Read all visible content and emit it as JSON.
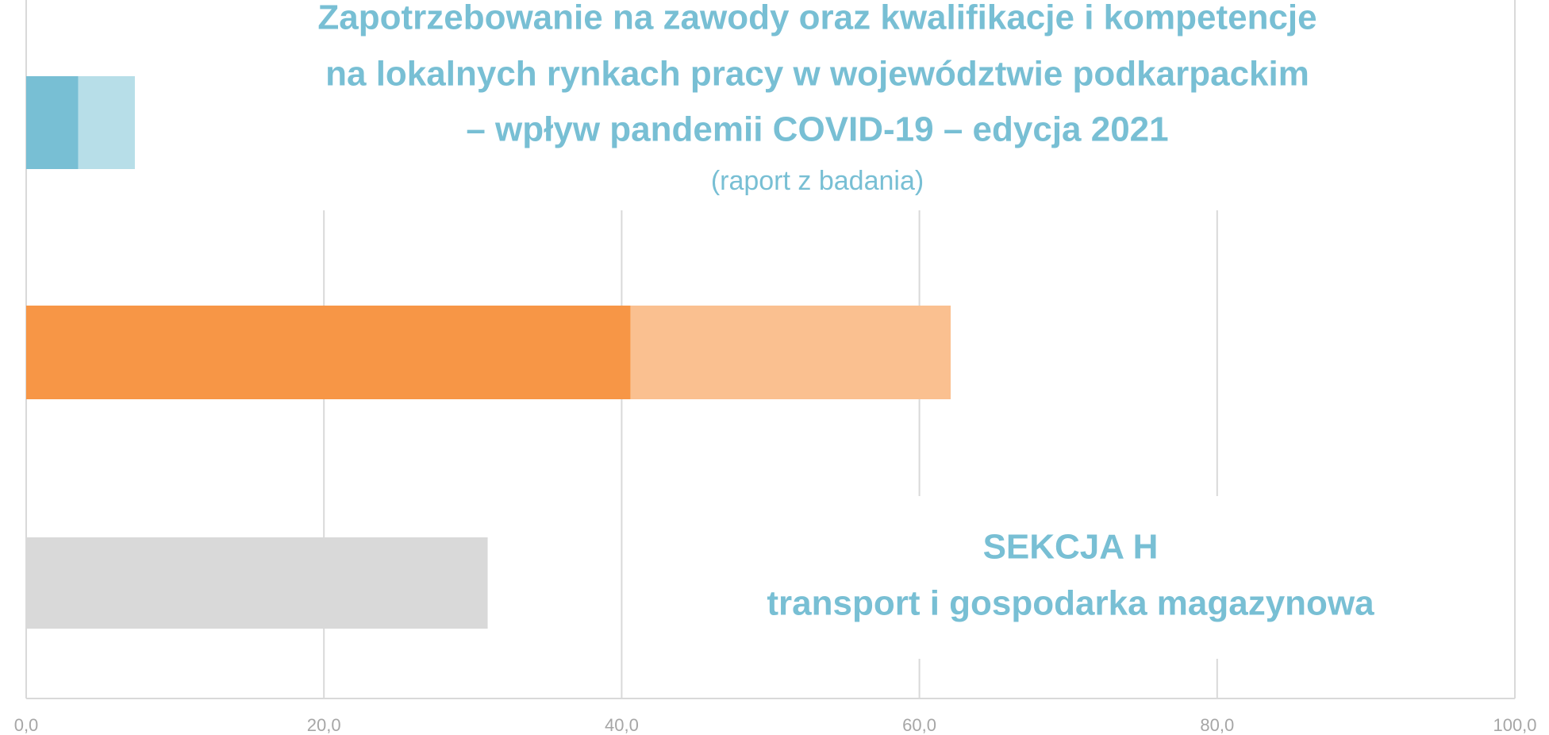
{
  "chart_data": {
    "type": "bar",
    "orientation": "horizontal",
    "stacked": true,
    "title": [
      "Zapotrzebowanie na zawody oraz kwalifikacje i kompetencje",
      "na lokalnych rynkach pracy w województwie podkarpackim",
      "– wpływ pandemii COVID-19 – edycja 2021"
    ],
    "subtitle": "(raport z badania)",
    "annotation": [
      "SEKCJA H",
      "transport i gospodarka magazynowa"
    ],
    "categories": [
      null,
      null,
      null
    ],
    "bars": [
      {
        "segments": [
          {
            "value": 3.5,
            "color": "#78bfd4"
          },
          {
            "value": 3.8,
            "color": "#b7dee8"
          }
        ]
      },
      {
        "segments": [
          {
            "value": 40.6,
            "color": "#f79646"
          },
          {
            "value": 21.5,
            "color": "#fac090"
          }
        ]
      },
      {
        "segments": [
          {
            "value": 31,
            "color": "#d9d9d9"
          }
        ]
      }
    ],
    "xlim": [
      0,
      100
    ],
    "xticks": [
      {
        "value": 0,
        "label": "0,0"
      },
      {
        "value": 20,
        "label": "20,0"
      },
      {
        "value": 40,
        "label": "40,0"
      },
      {
        "value": 60,
        "label": "60,0"
      },
      {
        "value": 80,
        "label": "80,0"
      },
      {
        "value": 100,
        "label": "100,0"
      }
    ],
    "grid": true
  }
}
